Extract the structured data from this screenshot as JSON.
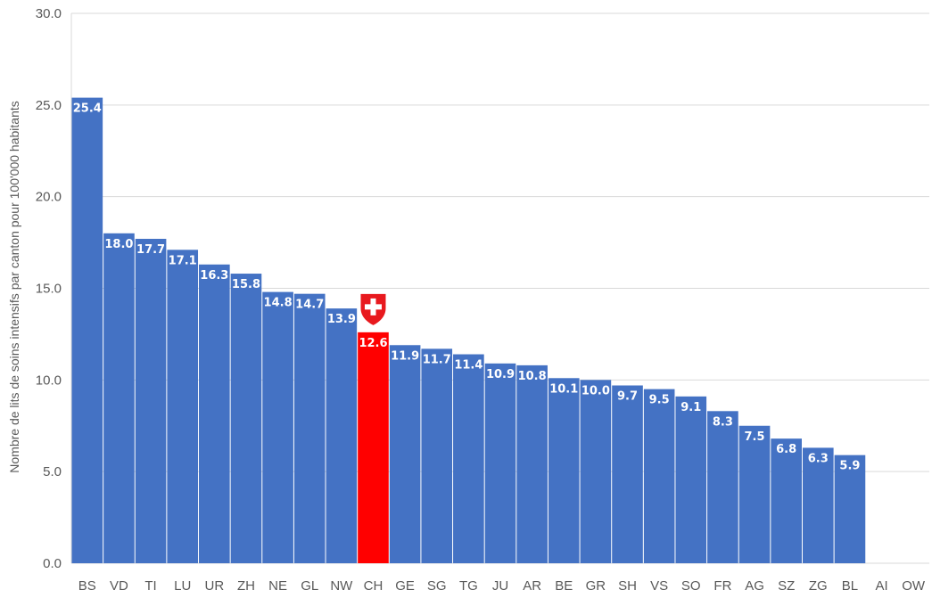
{
  "chart_data": {
    "type": "bar",
    "title": "",
    "xlabel": "",
    "ylabel": "Nombre de lits de soins intensifs par canton pour 100'000 habitants",
    "ylim": [
      0,
      30
    ],
    "yticks": [
      "0.0",
      "5.0",
      "10.0",
      "15.0",
      "20.0",
      "25.0",
      "30.0"
    ],
    "grid": true,
    "legend": "none",
    "categories": [
      "BS",
      "VD",
      "TI",
      "LU",
      "UR",
      "ZH",
      "NE",
      "GL",
      "NW",
      "CH",
      "GE",
      "SG",
      "TG",
      "JU",
      "AR",
      "BE",
      "GR",
      "SH",
      "VS",
      "SO",
      "FR",
      "AG",
      "SZ",
      "ZG",
      "BL",
      "AI",
      "OW"
    ],
    "values": [
      25.4,
      18.0,
      17.7,
      17.1,
      16.3,
      15.8,
      14.8,
      14.7,
      13.9,
      12.6,
      11.9,
      11.7,
      11.4,
      10.9,
      10.8,
      10.1,
      10.0,
      9.7,
      9.5,
      9.1,
      8.3,
      7.5,
      6.8,
      6.3,
      5.9,
      null,
      null
    ],
    "value_labels": [
      "25.4",
      "18.0",
      "17.7",
      "17.1",
      "16.3",
      "15.8",
      "14.8",
      "14.7",
      "13.9",
      "12.6",
      "11.9",
      "11.7",
      "11.4",
      "10.9",
      "10.8",
      "10.1",
      "10.0",
      "9.7",
      "9.5",
      "9.1",
      "8.3",
      "7.5",
      "6.8",
      "6.3",
      "5.9",
      "",
      ""
    ],
    "highlight_category": "CH",
    "highlight_icon": "swiss-cross-shield-icon",
    "colors": {
      "bar": "#4472C4",
      "highlight": "#FF0000",
      "grid": "#D9D9D9",
      "axis_text": "#595959",
      "label_text": "#FFFFFF"
    }
  }
}
